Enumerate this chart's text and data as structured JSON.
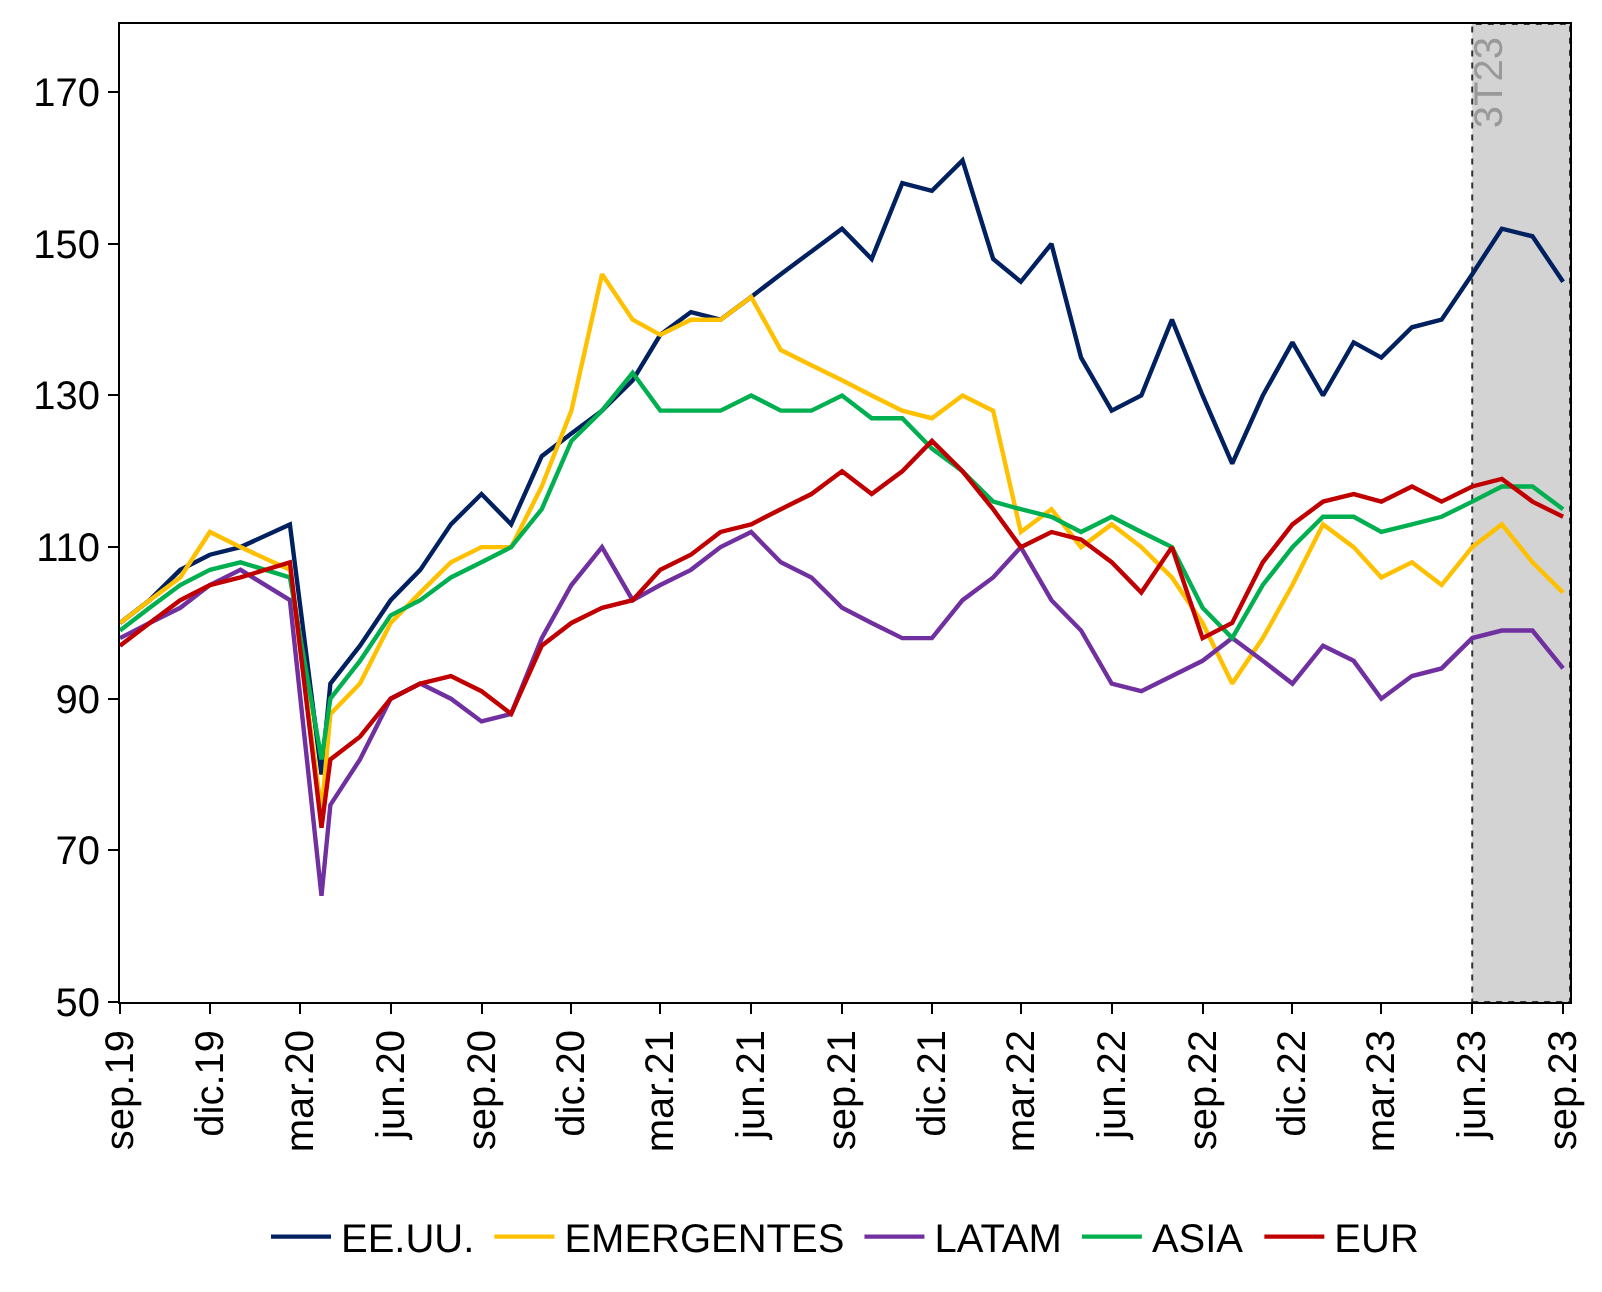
{
  "chart_data": {
    "type": "line",
    "x": [
      "2019-09",
      "2019-10",
      "2019-11",
      "2019-12",
      "2020-01",
      "2020-02-20",
      "2020-03-23",
      "2020-04",
      "2020-05",
      "2020-06",
      "2020-07",
      "2020-08",
      "2020-09",
      "2020-10",
      "2020-11",
      "2020-12",
      "2021-01",
      "2021-02",
      "2021-03",
      "2021-04",
      "2021-05",
      "2021-06",
      "2021-07",
      "2021-08",
      "2021-09",
      "2021-10",
      "2021-11",
      "2021-12",
      "2022-01",
      "2022-02",
      "2022-03",
      "2022-04",
      "2022-05",
      "2022-06",
      "2022-07",
      "2022-08",
      "2022-09",
      "2022-10",
      "2022-11",
      "2022-12",
      "2023-01",
      "2023-02",
      "2023-03",
      "2023-04",
      "2023-05",
      "2023-06",
      "2023-07",
      "2023-08",
      "2023-09"
    ],
    "series": [
      {
        "name": "EE.UU.",
        "color": "#002060",
        "values": [
          100,
          103,
          107,
          109,
          110,
          113,
          80,
          92,
          97,
          103,
          107,
          113,
          117,
          113,
          122,
          125,
          128,
          132,
          138,
          141,
          140,
          143,
          146,
          149,
          152,
          148,
          158,
          157,
          161,
          148,
          145,
          150,
          135,
          128,
          130,
          140,
          130,
          121,
          130,
          137,
          130,
          137,
          135,
          139,
          140,
          146,
          152,
          151,
          145
        ]
      },
      {
        "name": "EMERGENTES",
        "color": "#ffc000",
        "values": [
          100,
          103,
          106,
          112,
          110,
          107,
          75,
          88,
          92,
          100,
          104,
          108,
          110,
          110,
          118,
          128,
          146,
          140,
          138,
          140,
          140,
          143,
          136,
          134,
          132,
          130,
          128,
          127,
          130,
          128,
          112,
          115,
          110,
          113,
          110,
          106,
          100,
          92,
          98,
          105,
          113,
          110,
          106,
          108,
          105,
          110,
          113,
          108,
          104
        ]
      },
      {
        "name": "LATAM",
        "color": "#7030a0",
        "values": [
          98,
          100,
          102,
          105,
          107,
          103,
          64,
          76,
          82,
          90,
          92,
          90,
          87,
          88,
          98,
          105,
          110,
          103,
          105,
          107,
          110,
          112,
          108,
          106,
          102,
          100,
          98,
          98,
          103,
          106,
          110,
          103,
          99,
          92,
          91,
          93,
          95,
          98,
          95,
          92,
          97,
          95,
          90,
          93,
          94,
          98,
          99,
          99,
          94
        ]
      },
      {
        "name": "ASIA",
        "color": "#00b050",
        "values": [
          99,
          102,
          105,
          107,
          108,
          106,
          82,
          90,
          95,
          101,
          103,
          106,
          108,
          110,
          115,
          124,
          128,
          133,
          128,
          128,
          128,
          130,
          128,
          128,
          130,
          127,
          127,
          123,
          120,
          116,
          115,
          114,
          112,
          114,
          112,
          110,
          102,
          98,
          105,
          110,
          114,
          114,
          112,
          113,
          114,
          116,
          118,
          118,
          115
        ]
      },
      {
        "name": "EUR",
        "color": "#c00000",
        "values": [
          97,
          100,
          103,
          105,
          106,
          108,
          73,
          82,
          85,
          90,
          92,
          93,
          91,
          88,
          97,
          100,
          102,
          103,
          107,
          109,
          112,
          113,
          115,
          117,
          120,
          117,
          120,
          124,
          120,
          115,
          110,
          112,
          111,
          108,
          104,
          110,
          98,
          100,
          108,
          113,
          116,
          117,
          116,
          118,
          116,
          118,
          119,
          116,
          114
        ]
      }
    ],
    "xlim": [
      "2019-09-01",
      "2023-09-08"
    ],
    "xticks": [
      {
        "value": "2019-09-01",
        "label": "sep.19"
      },
      {
        "value": "2019-12-01",
        "label": "dic.19"
      },
      {
        "value": "2020-03-01",
        "label": "mar.20"
      },
      {
        "value": "2020-06-01",
        "label": "jun.20"
      },
      {
        "value": "2020-09-01",
        "label": "sep.20"
      },
      {
        "value": "2020-12-01",
        "label": "dic.20"
      },
      {
        "value": "2021-03-01",
        "label": "mar.21"
      },
      {
        "value": "2021-06-01",
        "label": "jun.21"
      },
      {
        "value": "2021-09-01",
        "label": "sep.21"
      },
      {
        "value": "2021-12-01",
        "label": "dic.21"
      },
      {
        "value": "2022-03-01",
        "label": "mar.22"
      },
      {
        "value": "2022-06-01",
        "label": "jun.22"
      },
      {
        "value": "2022-09-01",
        "label": "sep.22"
      },
      {
        "value": "2022-12-01",
        "label": "dic.22"
      },
      {
        "value": "2023-03-01",
        "label": "mar.23"
      },
      {
        "value": "2023-06-01",
        "label": "jun.23"
      },
      {
        "value": "2023-09-01",
        "label": "sep.23"
      }
    ],
    "ylim": [
      50,
      179
    ],
    "yticks": [
      50,
      70,
      90,
      110,
      130,
      150,
      170
    ],
    "bands": [
      {
        "axis": "x",
        "from": "2023-06-01",
        "to": "2023-09-08",
        "label": "3T23",
        "color": "#d3d3d3"
      }
    ],
    "grid": false,
    "legend": "bottom",
    "marker": "none",
    "line_style": "solid"
  }
}
